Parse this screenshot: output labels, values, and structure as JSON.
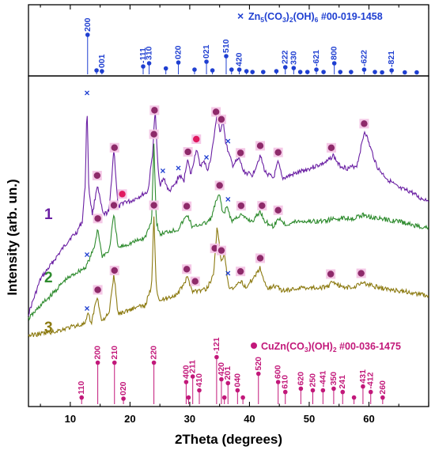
{
  "chart_data": {
    "type": "line",
    "xlabel": "2Theta (degrees)",
    "ylabel": "Intensity (arb. un.)",
    "xlim": [
      3,
      70
    ],
    "x_ticks": [
      "10",
      "20",
      "30",
      "40",
      "50",
      "60"
    ],
    "colors": {
      "sample1": "#6a1fa3",
      "sample2": "#2e8b2e",
      "sample3": "#8c7a10",
      "hz": "#1f3fd1",
      "mal": "#c2187a"
    },
    "series": [
      {
        "name": "1",
        "points": [
          [
            3.0,
            0.72
          ],
          [
            5.0,
            0.615
          ],
          [
            8.0,
            0.54
          ],
          [
            10.0,
            0.49
          ],
          [
            11.0,
            0.475
          ],
          [
            12.0,
            0.44
          ],
          [
            12.5,
            0.33
          ],
          [
            12.8,
            0.08
          ],
          [
            13.1,
            0.34
          ],
          [
            13.7,
            0.42
          ],
          [
            14.5,
            0.33
          ],
          [
            15.5,
            0.42
          ],
          [
            16.5,
            0.41
          ],
          [
            17.3,
            0.22
          ],
          [
            18.0,
            0.4
          ],
          [
            19.0,
            0.38
          ],
          [
            20.0,
            0.38
          ],
          [
            21.0,
            0.37
          ],
          [
            22.0,
            0.36
          ],
          [
            23.0,
            0.35
          ],
          [
            23.8,
            0.23
          ],
          [
            24.2,
            0.1
          ],
          [
            24.6,
            0.25
          ],
          [
            25.0,
            0.33
          ],
          [
            25.7,
            0.31
          ],
          [
            26.5,
            0.35
          ],
          [
            27.5,
            0.33
          ],
          [
            28.3,
            0.3
          ],
          [
            29.0,
            0.32
          ],
          [
            29.6,
            0.25
          ],
          [
            30.2,
            0.3
          ],
          [
            31.1,
            0.22
          ],
          [
            31.7,
            0.27
          ],
          [
            32.6,
            0.26
          ],
          [
            33.0,
            0.29
          ],
          [
            33.6,
            0.24
          ],
          [
            34.2,
            0.17
          ],
          [
            34.6,
            0.105
          ],
          [
            35.1,
            0.18
          ],
          [
            35.6,
            0.13
          ],
          [
            36.0,
            0.2
          ],
          [
            36.6,
            0.24
          ],
          [
            37.2,
            0.27
          ],
          [
            38.3,
            0.25
          ],
          [
            39.0,
            0.29
          ],
          [
            40.5,
            0.3
          ],
          [
            41.8,
            0.24
          ],
          [
            42.6,
            0.29
          ],
          [
            44.0,
            0.31
          ],
          [
            44.8,
            0.26
          ],
          [
            45.5,
            0.31
          ],
          [
            47.0,
            0.3
          ],
          [
            48.5,
            0.29
          ],
          [
            50.0,
            0.28
          ],
          [
            51.5,
            0.27
          ],
          [
            53.0,
            0.26
          ],
          [
            54.0,
            0.24
          ],
          [
            55.0,
            0.27
          ],
          [
            56.5,
            0.28
          ],
          [
            58.0,
            0.27
          ],
          [
            59.3,
            0.165
          ],
          [
            60.3,
            0.22
          ],
          [
            61.5,
            0.28
          ],
          [
            63.0,
            0.31
          ],
          [
            65.0,
            0.34
          ],
          [
            67.0,
            0.35
          ],
          [
            68.5,
            0.37
          ],
          [
            70.0,
            0.375
          ]
        ]
      },
      {
        "name": "2",
        "points": [
          [
            3.0,
            0.735
          ],
          [
            5.0,
            0.695
          ],
          [
            7.0,
            0.66
          ],
          [
            9.0,
            0.62
          ],
          [
            11.0,
            0.595
          ],
          [
            12.5,
            0.58
          ],
          [
            13.2,
            0.555
          ],
          [
            14.0,
            0.52
          ],
          [
            14.6,
            0.46
          ],
          [
            15.3,
            0.545
          ],
          [
            16.5,
            0.53
          ],
          [
            17.3,
            0.42
          ],
          [
            18.0,
            0.52
          ],
          [
            19.5,
            0.51
          ],
          [
            21.0,
            0.5
          ],
          [
            22.5,
            0.49
          ],
          [
            23.6,
            0.44
          ],
          [
            24.0,
            0.205
          ],
          [
            24.4,
            0.44
          ],
          [
            25.0,
            0.48
          ],
          [
            26.5,
            0.47
          ],
          [
            28.0,
            0.465
          ],
          [
            29.6,
            0.42
          ],
          [
            30.5,
            0.46
          ],
          [
            31.5,
            0.45
          ],
          [
            32.8,
            0.445
          ],
          [
            33.6,
            0.43
          ],
          [
            34.4,
            0.38
          ],
          [
            35.0,
            0.36
          ],
          [
            35.6,
            0.42
          ],
          [
            36.3,
            0.395
          ],
          [
            37.0,
            0.44
          ],
          [
            38.5,
            0.42
          ],
          [
            39.2,
            0.43
          ],
          [
            40.5,
            0.44
          ],
          [
            41.8,
            0.41
          ],
          [
            42.6,
            0.44
          ],
          [
            44.0,
            0.455
          ],
          [
            45.0,
            0.43
          ],
          [
            46.0,
            0.45
          ],
          [
            48.0,
            0.44
          ],
          [
            50.0,
            0.44
          ],
          [
            52.0,
            0.44
          ],
          [
            53.5,
            0.435
          ],
          [
            55.5,
            0.43
          ],
          [
            57.5,
            0.43
          ],
          [
            59.2,
            0.42
          ],
          [
            61.0,
            0.43
          ],
          [
            63.0,
            0.435
          ],
          [
            65.0,
            0.44
          ],
          [
            67.0,
            0.45
          ],
          [
            68.5,
            0.455
          ],
          [
            70.0,
            0.46
          ]
        ]
      },
      {
        "name": "3",
        "points": [
          [
            3.0,
            0.785
          ],
          [
            5.0,
            0.78
          ],
          [
            7.0,
            0.775
          ],
          [
            9.0,
            0.765
          ],
          [
            11.0,
            0.755
          ],
          [
            12.5,
            0.75
          ],
          [
            13.0,
            0.72
          ],
          [
            13.5,
            0.75
          ],
          [
            14.5,
            0.665
          ],
          [
            15.2,
            0.74
          ],
          [
            16.5,
            0.72
          ],
          [
            17.3,
            0.6
          ],
          [
            18.0,
            0.72
          ],
          [
            19.5,
            0.71
          ],
          [
            21.0,
            0.7
          ],
          [
            22.5,
            0.695
          ],
          [
            23.6,
            0.64
          ],
          [
            24.0,
            0.42
          ],
          [
            24.4,
            0.64
          ],
          [
            25.0,
            0.68
          ],
          [
            26.5,
            0.67
          ],
          [
            28.0,
            0.66
          ],
          [
            29.6,
            0.61
          ],
          [
            30.5,
            0.65
          ],
          [
            31.5,
            0.65
          ],
          [
            32.8,
            0.645
          ],
          [
            34.0,
            0.6
          ],
          [
            34.6,
            0.45
          ],
          [
            35.2,
            0.56
          ],
          [
            35.8,
            0.54
          ],
          [
            36.5,
            0.64
          ],
          [
            37.5,
            0.645
          ],
          [
            38.5,
            0.62
          ],
          [
            39.5,
            0.64
          ],
          [
            41.8,
            0.58
          ],
          [
            42.8,
            0.64
          ],
          [
            44.5,
            0.635
          ],
          [
            45.5,
            0.65
          ],
          [
            47.0,
            0.645
          ],
          [
            49.0,
            0.64
          ],
          [
            51.0,
            0.64
          ],
          [
            53.0,
            0.64
          ],
          [
            54.0,
            0.62
          ],
          [
            55.5,
            0.64
          ],
          [
            57.5,
            0.64
          ],
          [
            58.5,
            0.625
          ],
          [
            59.8,
            0.63
          ],
          [
            61.5,
            0.64
          ],
          [
            63.0,
            0.645
          ],
          [
            65.0,
            0.65
          ],
          [
            67.0,
            0.655
          ],
          [
            68.5,
            0.66
          ],
          [
            70.0,
            0.665
          ]
        ]
      }
    ],
    "sample_labels": [
      "1",
      "2",
      "3"
    ],
    "references": [
      {
        "name": "Zn5(CO3)2(OH)6 #00-019-1458",
        "legend_text": "Zn",
        "legend_sub1": "5",
        "legend_mid": "(CO",
        "legend_sub2": "3",
        "legend_mid2": ")",
        "legend_sub3": "2",
        "legend_tail": "(OH)",
        "legend_sub4": "6",
        "legend_code": " #00-019-1458",
        "lines": [
          {
            "x": 12.9,
            "h": 1.0,
            "label": "200"
          },
          {
            "x": 14.4,
            "h": 0.1,
            "label": ""
          },
          {
            "x": 15.3,
            "h": 0.08,
            "label": "001"
          },
          {
            "x": 22.2,
            "h": 0.2,
            "label": "-111"
          },
          {
            "x": 23.2,
            "h": 0.28,
            "label": "310"
          },
          {
            "x": 26.0,
            "h": 0.15,
            "label": ""
          },
          {
            "x": 28.1,
            "h": 0.3,
            "label": "020"
          },
          {
            "x": 30.8,
            "h": 0.12,
            "label": ""
          },
          {
            "x": 32.8,
            "h": 0.32,
            "label": "021"
          },
          {
            "x": 33.8,
            "h": 0.1,
            "label": ""
          },
          {
            "x": 36.1,
            "h": 0.46,
            "label": "510"
          },
          {
            "x": 37.0,
            "h": 0.12,
            "label": ""
          },
          {
            "x": 38.3,
            "h": 0.12,
            "label": "420"
          },
          {
            "x": 39.5,
            "h": 0.08,
            "label": ""
          },
          {
            "x": 40.5,
            "h": 0.06,
            "label": ""
          },
          {
            "x": 42.3,
            "h": 0.06,
            "label": ""
          },
          {
            "x": 44.5,
            "h": 0.08,
            "label": ""
          },
          {
            "x": 46.0,
            "h": 0.18,
            "label": "222"
          },
          {
            "x": 47.4,
            "h": 0.16,
            "label": "330"
          },
          {
            "x": 48.5,
            "h": 0.06,
            "label": ""
          },
          {
            "x": 49.7,
            "h": 0.06,
            "label": ""
          },
          {
            "x": 51.2,
            "h": 0.12,
            "label": "-621"
          },
          {
            "x": 52.4,
            "h": 0.06,
            "label": ""
          },
          {
            "x": 54.2,
            "h": 0.28,
            "label": "800"
          },
          {
            "x": 55.2,
            "h": 0.06,
            "label": ""
          },
          {
            "x": 57.0,
            "h": 0.06,
            "label": ""
          },
          {
            "x": 59.2,
            "h": 0.12,
            "label": "-622"
          },
          {
            "x": 61.0,
            "h": 0.06,
            "label": ""
          },
          {
            "x": 62.2,
            "h": 0.05,
            "label": ""
          },
          {
            "x": 63.8,
            "h": 0.1,
            "label": "-821"
          },
          {
            "x": 66.0,
            "h": 0.05,
            "label": ""
          },
          {
            "x": 68.0,
            "h": 0.05,
            "label": ""
          }
        ]
      },
      {
        "name": "CuZn(CO3)(OH)2 #00-036-1475",
        "legend_text": "CuZn(CO",
        "legend_sub1": "3",
        "legend_mid": ")(OH)",
        "legend_sub2": "2",
        "legend_code": " #00-036-1475",
        "lines": [
          {
            "x": 11.9,
            "h": 0.12,
            "label": "110"
          },
          {
            "x": 14.6,
            "h": 0.75,
            "label": "200"
          },
          {
            "x": 17.4,
            "h": 0.75,
            "label": "210"
          },
          {
            "x": 18.9,
            "h": 0.1,
            "label": "020"
          },
          {
            "x": 24.0,
            "h": 0.75,
            "label": "220"
          },
          {
            "x": 29.4,
            "h": 0.4,
            "label": "400"
          },
          {
            "x": 29.8,
            "h": 0.12,
            "label": ""
          },
          {
            "x": 30.5,
            "h": 0.5,
            "label": "211"
          },
          {
            "x": 31.6,
            "h": 0.25,
            "label": "410"
          },
          {
            "x": 34.5,
            "h": 0.85,
            "label": "-121"
          },
          {
            "x": 35.3,
            "h": 0.45,
            "label": "420"
          },
          {
            "x": 35.8,
            "h": 0.12,
            "label": ""
          },
          {
            "x": 36.4,
            "h": 0.38,
            "label": "201"
          },
          {
            "x": 38.0,
            "h": 0.25,
            "label": "040"
          },
          {
            "x": 38.9,
            "h": 0.12,
            "label": ""
          },
          {
            "x": 41.5,
            "h": 0.55,
            "label": "520"
          },
          {
            "x": 44.8,
            "h": 0.4,
            "label": "600"
          },
          {
            "x": 46.0,
            "h": 0.22,
            "label": "610"
          },
          {
            "x": 48.6,
            "h": 0.28,
            "label": "620"
          },
          {
            "x": 50.6,
            "h": 0.25,
            "label": "250"
          },
          {
            "x": 52.3,
            "h": 0.25,
            "label": "-441"
          },
          {
            "x": 54.1,
            "h": 0.28,
            "label": "350"
          },
          {
            "x": 55.6,
            "h": 0.22,
            "label": "241"
          },
          {
            "x": 57.5,
            "h": 0.12,
            "label": ""
          },
          {
            "x": 59.0,
            "h": 0.32,
            "label": "431"
          },
          {
            "x": 60.3,
            "h": 0.22,
            "label": "-412"
          },
          {
            "x": 62.3,
            "h": 0.12,
            "label": "260"
          }
        ]
      }
    ],
    "markers": {
      "mal": [
        {
          "s": 0,
          "x": 14.5
        },
        {
          "s": 0,
          "x": 17.4
        },
        {
          "s": 0,
          "x": 18.7
        },
        {
          "s": 0,
          "x": 24.1
        },
        {
          "s": 0,
          "x": 29.7
        },
        {
          "s": 0,
          "x": 31.1
        },
        {
          "s": 0,
          "x": 34.4
        },
        {
          "s": 0,
          "x": 35.3
        },
        {
          "s": 0,
          "x": 38.5
        },
        {
          "s": 0,
          "x": 41.8
        },
        {
          "s": 0,
          "x": 44.8
        },
        {
          "s": 0,
          "x": 53.7
        },
        {
          "s": 0,
          "x": 59.2
        },
        {
          "s": 1,
          "x": 14.6
        },
        {
          "s": 1,
          "x": 17.3
        },
        {
          "s": 1,
          "x": 24.0
        },
        {
          "s": 1,
          "x": 29.5
        },
        {
          "s": 1,
          "x": 35.0
        },
        {
          "s": 1,
          "x": 38.6
        },
        {
          "s": 1,
          "x": 42.1
        },
        {
          "s": 1,
          "x": 44.8
        },
        {
          "s": 2,
          "x": 14.6
        },
        {
          "s": 2,
          "x": 17.4
        },
        {
          "s": 2,
          "x": 24.0
        },
        {
          "s": 2,
          "x": 29.5
        },
        {
          "s": 2,
          "x": 30.9
        },
        {
          "s": 2,
          "x": 34.2
        },
        {
          "s": 2,
          "x": 35.3
        },
        {
          "s": 2,
          "x": 38.5
        },
        {
          "s": 2,
          "x": 41.8
        },
        {
          "s": 2,
          "x": 53.6
        },
        {
          "s": 2,
          "x": 58.7
        }
      ],
      "hz": [
        {
          "s": 0,
          "x": 12.8
        },
        {
          "s": 0,
          "x": 25.5
        },
        {
          "s": 0,
          "x": 28.1
        },
        {
          "s": 0,
          "x": 32.8
        },
        {
          "s": 0,
          "x": 36.4
        },
        {
          "s": 1,
          "x": 12.8
        },
        {
          "s": 1,
          "x": 36.4
        },
        {
          "s": 2,
          "x": 12.8
        },
        {
          "s": 2,
          "x": 36.4
        }
      ]
    }
  }
}
